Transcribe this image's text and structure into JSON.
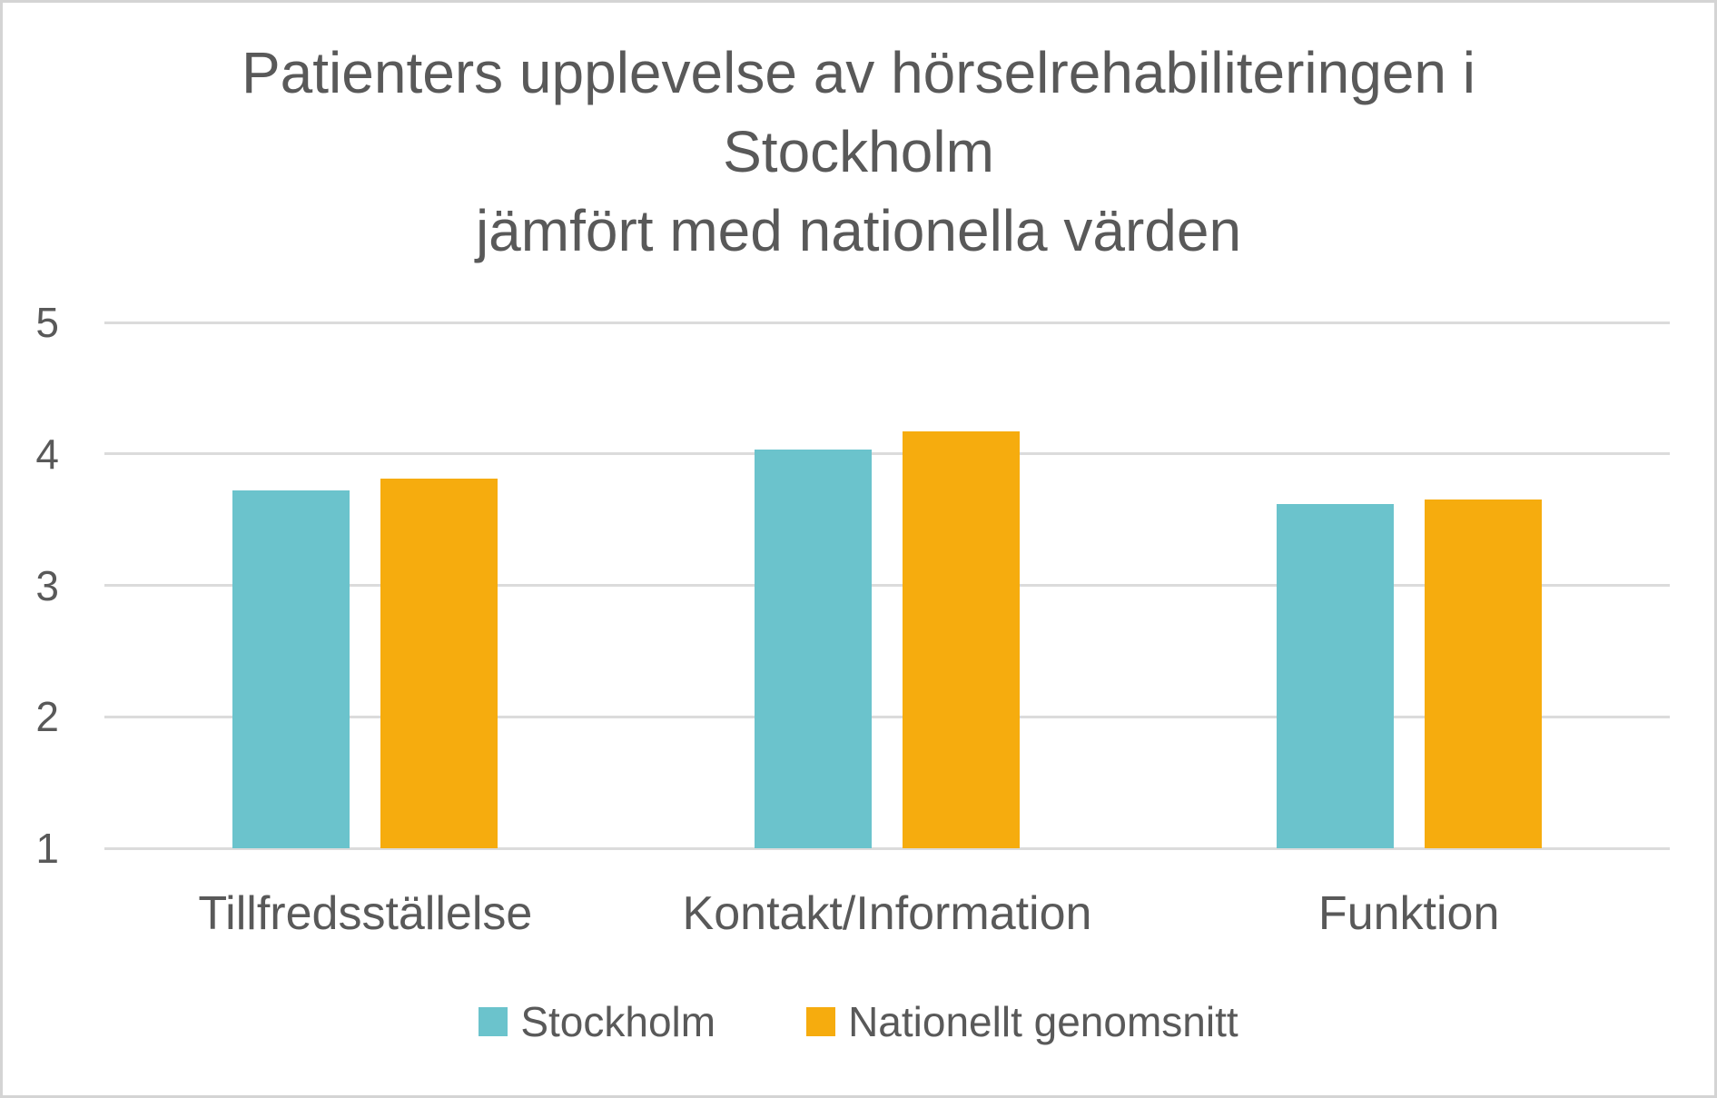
{
  "chart_data": {
    "type": "bar",
    "title": "Patienters upplevelse av hörselrehabiliteringen i Stockholm jämfört med nationella värden",
    "title_lines": [
      "Patienters upplevelse av hörselrehabiliteringen i",
      "Stockholm",
      "jämfört med nationella värden"
    ],
    "categories": [
      "Tillfredsställelse",
      "Kontakt/Information",
      "Funktion"
    ],
    "series": [
      {
        "name": "Stockholm",
        "color": "#6bc3cc",
        "values": [
          3.72,
          4.03,
          3.62
        ]
      },
      {
        "name": "Nationellt genomsnitt",
        "color": "#f6ac0e",
        "values": [
          3.81,
          4.17,
          3.65
        ]
      }
    ],
    "y_axis": {
      "min": 1,
      "max": 5,
      "ticks": [
        5,
        4,
        3,
        2,
        1
      ]
    },
    "xlabel": "",
    "ylabel": "",
    "grid": true,
    "legend_position": "bottom"
  },
  "colors": {
    "text": "#595959",
    "gridline": "#dbdbdb",
    "border": "#d4d4d4",
    "background": "#ffffff"
  }
}
